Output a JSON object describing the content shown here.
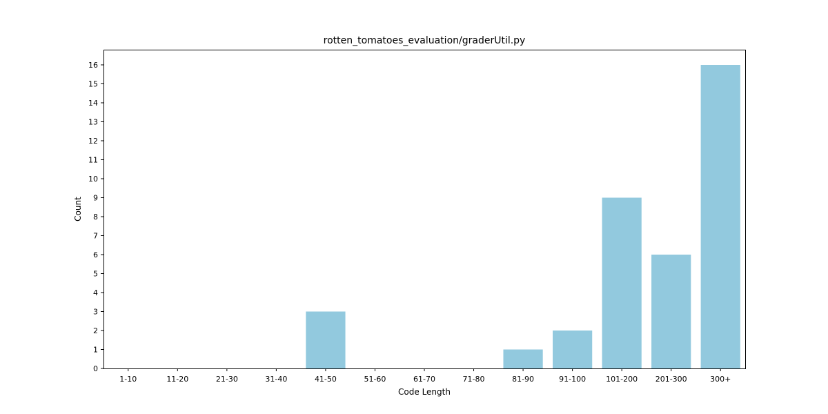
{
  "chart_data": {
    "type": "bar",
    "title": "rotten_tomatoes_evaluation/graderUtil.py",
    "xlabel": "Code Length",
    "ylabel": "Count",
    "categories": [
      "1-10",
      "11-20",
      "21-30",
      "31-40",
      "41-50",
      "51-60",
      "61-70",
      "71-80",
      "81-90",
      "91-100",
      "101-200",
      "201-300",
      "300+"
    ],
    "values": [
      0,
      0,
      0,
      0,
      3,
      0,
      0,
      0,
      1,
      2,
      9,
      6,
      16
    ],
    "ylim": [
      0,
      16.8
    ],
    "yticks": [
      0,
      1,
      2,
      3,
      4,
      5,
      6,
      7,
      8,
      9,
      10,
      11,
      12,
      13,
      14,
      15,
      16
    ],
    "grid": false,
    "bar_color": "#92c9de"
  }
}
